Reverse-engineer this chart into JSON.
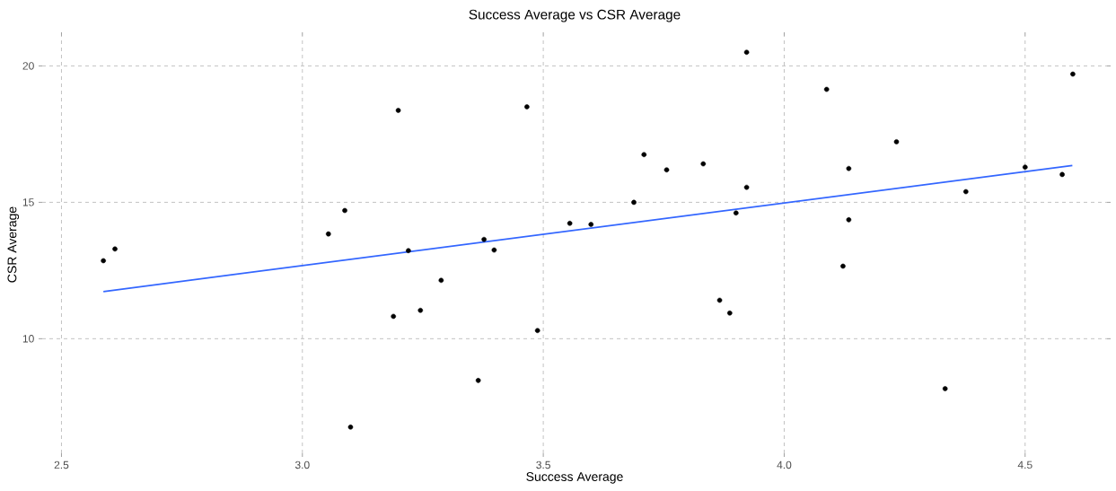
{
  "chart_data": {
    "type": "scatter",
    "title": "Success Average vs CSR Average",
    "xlabel": "Success Average",
    "ylabel": "CSR Average",
    "xlim": [
      2.46,
      4.67
    ],
    "ylim": [
      5.8,
      21.1
    ],
    "xticks": [
      2.5,
      {
        "value": 3,
        "label": "3.0"
      },
      3.5,
      {
        "value": 4,
        "label": "4.0"
      },
      4.5
    ],
    "yticks": [
      10,
      15,
      20
    ],
    "grid": true,
    "series": [
      {
        "marker": "circle",
        "color": "#000000",
        "x": [
          2.587,
          2.611,
          3.054,
          3.088,
          3.1,
          3.199,
          3.189,
          3.245,
          3.22,
          3.288,
          3.377,
          3.398,
          3.365,
          3.466,
          3.488,
          3.555,
          3.599,
          3.688,
          3.709,
          3.756,
          3.832,
          3.922,
          3.9,
          3.866,
          3.887,
          3.922,
          4.088,
          4.599,
          4.233,
          4.134,
          4.5,
          4.577,
          4.377,
          4.134,
          4.122,
          4.334
        ],
        "values": [
          12.86,
          13.29,
          13.84,
          14.7,
          6.76,
          18.37,
          10.82,
          11.04,
          13.23,
          12.14,
          13.64,
          13.25,
          8.47,
          18.5,
          10.3,
          14.23,
          14.19,
          15.0,
          16.75,
          16.19,
          16.41,
          15.55,
          14.61,
          11.41,
          10.94,
          20.5,
          19.14,
          19.7,
          17.22,
          16.24,
          16.29,
          16.02,
          15.39,
          14.36,
          12.66,
          8.17
        ]
      },
      {
        "type": "line",
        "marker": "none",
        "color": "#3366ff",
        "line_style": "solid",
        "x": [
          2.587,
          4.598
        ],
        "values": [
          11.73,
          16.35
        ]
      }
    ]
  }
}
